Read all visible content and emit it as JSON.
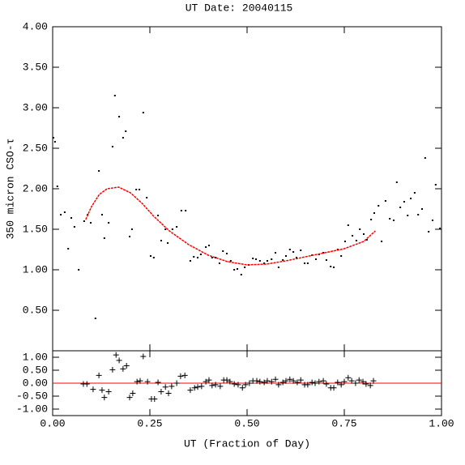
{
  "chart_data": [
    {
      "type": "scatter",
      "title": "UT Date: 20040115",
      "y_label": "350 micron CSO-τ",
      "xlim": [
        0,
        1
      ],
      "ylim": [
        0,
        4
      ],
      "yticks": [
        {
          "value": 0.5,
          "label": "0.50"
        },
        {
          "value": 1,
          "label": "1.00"
        },
        {
          "value": 1.5,
          "label": "1.50"
        },
        {
          "value": 2,
          "label": "2.00"
        },
        {
          "value": 2.5,
          "label": "2.50"
        },
        {
          "value": 3,
          "label": "3.00"
        },
        {
          "value": 3.5,
          "label": "3.50"
        },
        {
          "value": 4,
          "label": "4.00"
        }
      ],
      "series": [
        {
          "style": "points",
          "color": "#000000",
          "x": [
            0.002,
            0.006,
            0.012,
            0.021,
            0.031,
            0.04,
            0.048,
            0.056,
            0.067,
            0.081,
            0.09,
            0.098,
            0.11,
            0.119,
            0.127,
            0.133,
            0.144,
            0.154,
            0.16,
            0.171,
            0.181,
            0.188,
            0.198,
            0.204,
            0.215,
            0.223,
            0.233,
            0.242,
            0.252,
            0.26,
            0.271,
            0.279,
            0.29,
            0.296,
            0.308,
            0.319,
            0.331,
            0.342,
            0.354,
            0.363,
            0.373,
            0.381,
            0.394,
            0.402,
            0.41,
            0.419,
            0.429,
            0.438,
            0.448,
            0.458,
            0.467,
            0.475,
            0.485,
            0.494,
            0.504,
            0.515,
            0.523,
            0.533,
            0.544,
            0.552,
            0.563,
            0.573,
            0.581,
            0.592,
            0.6,
            0.61,
            0.619,
            0.627,
            0.638,
            0.648,
            0.656,
            0.667,
            0.677,
            0.685,
            0.696,
            0.704,
            0.715,
            0.723,
            0.733,
            0.742,
            0.752,
            0.76,
            0.771,
            0.781,
            0.79,
            0.8,
            0.808,
            0.819,
            0.827,
            0.838,
            0.846,
            0.856,
            0.867,
            0.877,
            0.885,
            0.894,
            0.904,
            0.913,
            0.921,
            0.931,
            0.94,
            0.95,
            0.958,
            0.967,
            0.977,
            0.985,
            0.996
          ],
          "values": [
            2.63,
            2.58,
            2.03,
            1.68,
            1.71,
            1.26,
            1.64,
            1.53,
            1.0,
            1.6,
            1.68,
            1.58,
            0.4,
            2.22,
            1.68,
            1.39,
            1.58,
            2.52,
            3.15,
            2.89,
            2.63,
            2.71,
            1.41,
            1.5,
            1.99,
            1.99,
            2.94,
            1.89,
            1.17,
            1.15,
            1.67,
            1.36,
            1.5,
            1.33,
            1.5,
            1.53,
            1.73,
            1.73,
            1.11,
            1.16,
            1.15,
            1.19,
            1.28,
            1.3,
            1.15,
            1.15,
            1.08,
            1.23,
            1.2,
            1.11,
            1.0,
            1.01,
            0.94,
            1.03,
            1.06,
            1.14,
            1.13,
            1.11,
            1.08,
            1.11,
            1.13,
            1.21,
            1.03,
            1.12,
            1.17,
            1.25,
            1.22,
            1.15,
            1.24,
            1.08,
            1.08,
            1.18,
            1.13,
            1.19,
            1.21,
            1.12,
            1.04,
            1.03,
            1.25,
            1.17,
            1.35,
            1.55,
            1.42,
            1.36,
            1.5,
            1.44,
            1.37,
            1.62,
            1.7,
            1.79,
            1.35,
            1.85,
            1.63,
            1.61,
            2.08,
            1.77,
            1.84,
            1.67,
            1.88,
            1.95,
            1.68,
            1.75,
            2.38,
            1.47,
            1.61,
            2.05,
            1.51
          ]
        },
        {
          "style": "line",
          "color": "#ff0000",
          "x": [
            0.085,
            0.1,
            0.12,
            0.14,
            0.17,
            0.2,
            0.23,
            0.26,
            0.3,
            0.35,
            0.4,
            0.45,
            0.5,
            0.55,
            0.6,
            0.65,
            0.7,
            0.75,
            0.8,
            0.83
          ],
          "values": [
            1.62,
            1.78,
            1.93,
            2.0,
            2.02,
            1.95,
            1.82,
            1.66,
            1.48,
            1.31,
            1.18,
            1.1,
            1.06,
            1.07,
            1.11,
            1.16,
            1.21,
            1.26,
            1.35,
            1.48
          ]
        }
      ]
    },
    {
      "type": "scatter",
      "x_label": "UT (Fraction of Day)",
      "xlim": [
        0,
        1
      ],
      "ylim": [
        -1.25,
        1.25
      ],
      "xticks": [
        {
          "value": 0,
          "label": "0.00"
        },
        {
          "value": 0.25,
          "label": "0.25"
        },
        {
          "value": 0.5,
          "label": "0.50"
        },
        {
          "value": 0.75,
          "label": "0.75"
        },
        {
          "value": 1,
          "label": "1.00"
        }
      ],
      "yticks": [
        {
          "value": -1,
          "label": "-1.00"
        },
        {
          "value": -0.5,
          "label": "-0.50"
        },
        {
          "value": 0,
          "label": "0.00"
        },
        {
          "value": 0.5,
          "label": "0.50"
        },
        {
          "value": 1,
          "label": "1.00"
        }
      ],
      "hline": {
        "value": 0,
        "color": "#ff0000"
      },
      "series": [
        {
          "style": "plus",
          "color": "#000000",
          "x": [
            0.079,
            0.088,
            0.104,
            0.119,
            0.127,
            0.133,
            0.144,
            0.154,
            0.163,
            0.171,
            0.181,
            0.19,
            0.198,
            0.206,
            0.217,
            0.225,
            0.233,
            0.244,
            0.254,
            0.262,
            0.271,
            0.279,
            0.29,
            0.298,
            0.306,
            0.319,
            0.329,
            0.34,
            0.354,
            0.365,
            0.373,
            0.383,
            0.394,
            0.402,
            0.41,
            0.419,
            0.431,
            0.44,
            0.448,
            0.456,
            0.467,
            0.477,
            0.488,
            0.496,
            0.506,
            0.515,
            0.525,
            0.533,
            0.544,
            0.552,
            0.563,
            0.573,
            0.581,
            0.592,
            0.6,
            0.61,
            0.619,
            0.629,
            0.638,
            0.648,
            0.656,
            0.667,
            0.675,
            0.685,
            0.696,
            0.704,
            0.715,
            0.723,
            0.733,
            0.742,
            0.75,
            0.76,
            0.769,
            0.779,
            0.788,
            0.798,
            0.806,
            0.817,
            0.825
          ],
          "values": [
            -0.03,
            -0.03,
            -0.24,
            0.3,
            -0.27,
            -0.55,
            -0.33,
            0.52,
            1.09,
            0.88,
            0.55,
            0.67,
            -0.55,
            -0.39,
            0.06,
            0.09,
            1.03,
            0.06,
            -0.61,
            -0.61,
            0.03,
            -0.33,
            -0.15,
            -0.39,
            -0.12,
            0,
            0.27,
            0.3,
            -0.27,
            -0.18,
            -0.15,
            -0.12,
            0.06,
            0.12,
            -0.09,
            -0.06,
            -0.12,
            0.12,
            0.12,
            0.06,
            -0.03,
            -0.06,
            -0.18,
            -0.06,
            0,
            0.09,
            0.09,
            0.06,
            0.03,
            0.09,
            0.06,
            0.15,
            -0.06,
            0.03,
            0.09,
            0.15,
            0.09,
            0.03,
            0.12,
            -0.06,
            -0.06,
            0.03,
            0,
            0.06,
            0.09,
            -0.03,
            -0.18,
            -0.18,
            0.03,
            -0.06,
            0.06,
            0.21,
            0.09,
            0,
            0.12,
            0.06,
            -0.03,
            -0.09,
            0.09
          ]
        }
      ]
    }
  ]
}
